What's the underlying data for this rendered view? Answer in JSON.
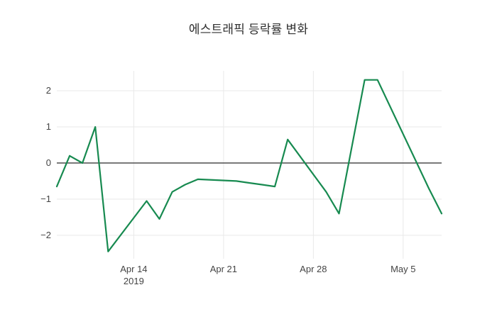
{
  "chart_data": {
    "type": "line",
    "title": "에스트래픽 등락률 변화",
    "xlabel": "",
    "ylabel": "",
    "grid": true,
    "legend": "none",
    "background": "#ffffff",
    "gridline_color": "#e9e9e9",
    "zeroline_color": "#3f3f3f",
    "tick_color": "#444444",
    "xlim": [
      "2019-04-08",
      "2019-05-08"
    ],
    "ylim": [
      -2.65,
      2.55
    ],
    "y_ticks": [
      {
        "v": 2,
        "label": "2"
      },
      {
        "v": 1,
        "label": "1"
      },
      {
        "v": 0,
        "label": "0"
      },
      {
        "v": -1,
        "label": "−1"
      },
      {
        "v": -2,
        "label": "−2"
      }
    ],
    "x_ticks": [
      {
        "date": "2019-04-14",
        "label": "Apr 14",
        "sublabel": "2019"
      },
      {
        "date": "2019-04-21",
        "label": "Apr 21",
        "sublabel": ""
      },
      {
        "date": "2019-04-28",
        "label": "Apr 28",
        "sublabel": ""
      },
      {
        "date": "2019-05-05",
        "label": "May 5",
        "sublabel": ""
      }
    ],
    "series": [
      {
        "name": "에스트래픽 등락률",
        "color": "#178a50",
        "line_width": 2.2,
        "dates": [
          "2019-04-08",
          "2019-04-09",
          "2019-04-10",
          "2019-04-11",
          "2019-04-12",
          "2019-04-15",
          "2019-04-16",
          "2019-04-17",
          "2019-04-18",
          "2019-04-19",
          "2019-04-22",
          "2019-04-23",
          "2019-04-24",
          "2019-04-25",
          "2019-04-26",
          "2019-04-29",
          "2019-04-30",
          "2019-05-02",
          "2019-05-03",
          "2019-05-07",
          "2019-05-08"
        ],
        "values": [
          -0.65,
          0.2,
          0.0,
          1.0,
          -2.45,
          -1.05,
          -1.55,
          -0.8,
          -0.6,
          -0.45,
          -0.5,
          -0.55,
          -0.6,
          -0.65,
          0.65,
          -0.8,
          -1.4,
          2.3,
          2.3,
          -0.7,
          -1.4
        ]
      }
    ]
  }
}
